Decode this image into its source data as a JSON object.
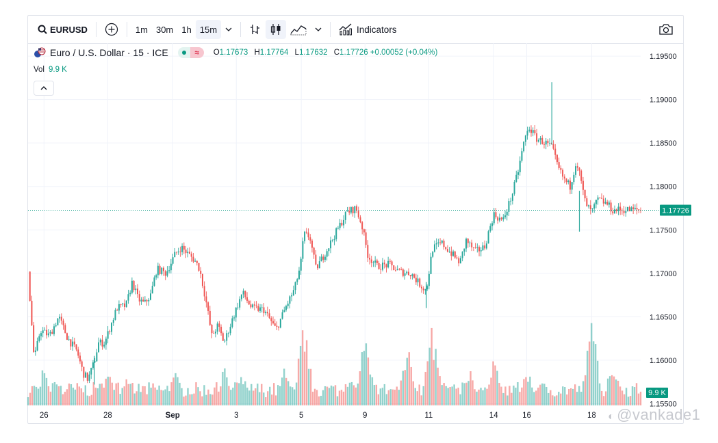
{
  "toolbar": {
    "symbol": "EURUSD",
    "intervals": [
      "1m",
      "30m",
      "1h",
      "15m"
    ],
    "active_interval": "15m",
    "indicators_label": "Indicators"
  },
  "legend": {
    "title": "Euro / U.S. Dollar · 15 · ICE",
    "o_label": "O",
    "o_value": "1.17673",
    "h_label": "H",
    "h_value": "1.17764",
    "l_label": "L",
    "l_value": "1.17632",
    "c_label": "C",
    "c_value": "1.17726",
    "change": "+0.00052 (+0.04%)",
    "vol_label": "Vol",
    "vol_value": "9.9 K"
  },
  "price_badge": "1.17726",
  "volume_badge": "9.9 K",
  "watermark": "@vankade1",
  "colors": {
    "up": "#26a69a",
    "down": "#ef5350",
    "axis_text": "#131722",
    "grid": "#f0f3fa",
    "badge": "#089981"
  },
  "chart_data": {
    "type": "candlestick",
    "title": "Euro / U.S. Dollar · 15 · ICE",
    "y_ticks": [
      "1.19500",
      "1.19000",
      "1.18500",
      "1.18000",
      "1.17500",
      "1.17000",
      "1.16500",
      "1.16000",
      "1.15500"
    ],
    "ylim": [
      1.1548,
      1.1965
    ],
    "x_ticks": [
      "26",
      "28",
      "Sep",
      "3",
      "5",
      "9",
      "11",
      "14",
      "16",
      "18"
    ],
    "x_tick_positions": [
      0.026,
      0.13,
      0.236,
      0.34,
      0.446,
      0.55,
      0.654,
      0.76,
      0.814,
      0.92
    ],
    "last_price": 1.17726,
    "series": [
      {
        "values": [
          [
            0.0,
            1.1702
          ],
          [
            0.01,
            1.16
          ],
          [
            0.02,
            1.1635
          ],
          [
            0.035,
            1.1628
          ],
          [
            0.05,
            1.165
          ],
          [
            0.065,
            1.1625
          ],
          [
            0.08,
            1.161
          ],
          [
            0.09,
            1.1585
          ],
          [
            0.098,
            1.1578
          ],
          [
            0.108,
            1.1598
          ],
          [
            0.115,
            1.162
          ],
          [
            0.125,
            1.162
          ],
          [
            0.135,
            1.164
          ],
          [
            0.145,
            1.166
          ],
          [
            0.16,
            1.1663
          ],
          [
            0.17,
            1.169
          ],
          [
            0.18,
            1.167
          ],
          [
            0.19,
            1.1665
          ],
          [
            0.2,
            1.1675
          ],
          [
            0.21,
            1.1705
          ],
          [
            0.225,
            1.17
          ],
          [
            0.24,
            1.1722
          ],
          [
            0.25,
            1.173
          ],
          [
            0.262,
            1.1722
          ],
          [
            0.272,
            1.1715
          ],
          [
            0.28,
            1.1705
          ],
          [
            0.29,
            1.167
          ],
          [
            0.3,
            1.1628
          ],
          [
            0.31,
            1.164
          ],
          [
            0.32,
            1.162
          ],
          [
            0.335,
            1.165
          ],
          [
            0.35,
            1.1678
          ],
          [
            0.365,
            1.166
          ],
          [
            0.385,
            1.1658
          ],
          [
            0.405,
            1.1635
          ],
          [
            0.42,
            1.166
          ],
          [
            0.435,
            1.1682
          ],
          [
            0.445,
            1.171
          ],
          [
            0.45,
            1.1745
          ],
          [
            0.46,
            1.1742
          ],
          [
            0.47,
            1.1705
          ],
          [
            0.49,
            1.173
          ],
          [
            0.505,
            1.175
          ],
          [
            0.52,
            1.177
          ],
          [
            0.535,
            1.1775
          ],
          [
            0.545,
            1.1755
          ],
          [
            0.555,
            1.172
          ],
          [
            0.57,
            1.1708
          ],
          [
            0.59,
            1.171
          ],
          [
            0.605,
            1.1702
          ],
          [
            0.625,
            1.17
          ],
          [
            0.64,
            1.1687
          ],
          [
            0.65,
            1.168
          ],
          [
            0.66,
            1.1728
          ],
          [
            0.675,
            1.1735
          ],
          [
            0.695,
            1.172
          ],
          [
            0.705,
            1.1712
          ],
          [
            0.715,
            1.1738
          ],
          [
            0.73,
            1.1725
          ],
          [
            0.745,
            1.173
          ],
          [
            0.76,
            1.1768
          ],
          [
            0.775,
            1.176
          ],
          [
            0.79,
            1.179
          ],
          [
            0.8,
            1.1818
          ],
          [
            0.81,
            1.1853
          ],
          [
            0.818,
            1.1868
          ],
          [
            0.83,
            1.1855
          ],
          [
            0.845,
            1.185
          ],
          [
            0.855,
            1.1845
          ],
          [
            0.865,
            1.1822
          ],
          [
            0.875,
            1.1808
          ],
          [
            0.885,
            1.18
          ],
          [
            0.895,
            1.183
          ],
          [
            0.9,
            1.1815
          ],
          [
            0.91,
            1.178
          ],
          [
            0.92,
            1.177
          ],
          [
            0.93,
            1.1785
          ],
          [
            0.945,
            1.178
          ],
          [
            0.955,
            1.1772
          ],
          [
            0.96,
            1.1773
          ]
        ]
      }
    ],
    "volume": {
      "spikes": [
        [
          0.026,
          0.45
        ],
        [
          0.046,
          0.35
        ],
        [
          0.13,
          0.4
        ],
        [
          0.16,
          0.3
        ],
        [
          0.24,
          0.4
        ],
        [
          0.32,
          0.45
        ],
        [
          0.35,
          0.35
        ],
        [
          0.42,
          0.5
        ],
        [
          0.45,
          0.95
        ],
        [
          0.525,
          0.4
        ],
        [
          0.55,
          0.8
        ],
        [
          0.62,
          0.75
        ],
        [
          0.66,
          0.9
        ],
        [
          0.72,
          0.45
        ],
        [
          0.76,
          0.55
        ],
        [
          0.815,
          0.4
        ],
        [
          0.92,
          1.0
        ],
        [
          0.955,
          0.55
        ]
      ]
    }
  }
}
